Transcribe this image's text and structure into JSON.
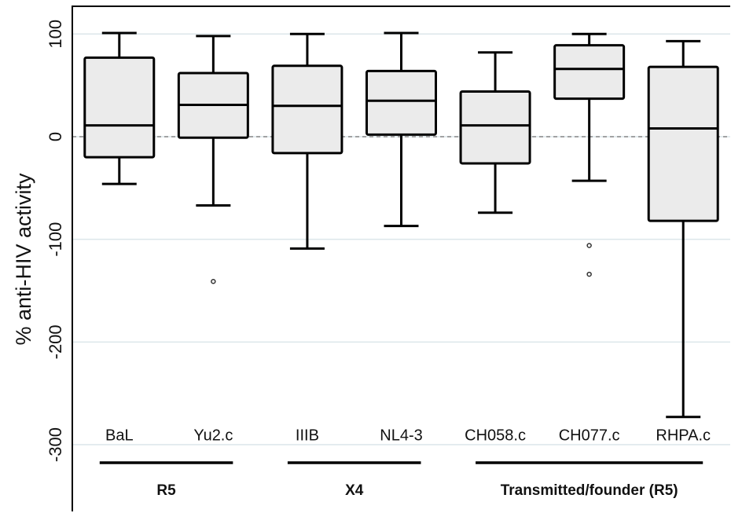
{
  "chart_data": {
    "type": "box",
    "y_label": "% anti-HIV activity",
    "categories": [
      "BaL",
      "Yu2.c",
      "IIIB",
      "NL4-3",
      "CH058.c",
      "CH077.c",
      "RHPA.c"
    ],
    "whisker_high": [
      101,
      98,
      100,
      101,
      82,
      100,
      93
    ],
    "q3": [
      77,
      62,
      69,
      64,
      44,
      89,
      68
    ],
    "median": [
      11,
      31,
      30,
      35,
      11,
      66,
      8
    ],
    "q1": [
      -20,
      -1,
      -16,
      2,
      -26,
      37,
      -82
    ],
    "whisker_low": [
      -46,
      -67,
      -109,
      -87,
      -74,
      -43,
      -273
    ],
    "outliers": [
      [],
      [
        -141
      ],
      [],
      [],
      [],
      [
        -106,
        -134
      ],
      []
    ],
    "color": "#ebebeb",
    "hline": 0,
    "groups": [
      {
        "label": "R5",
        "members": [
          "BaL",
          "Yu2.c"
        ]
      },
      {
        "label": "X4",
        "members": [
          "IIIB",
          "NL4-3"
        ]
      },
      {
        "label": "Transmitted/founder (R5)",
        "members": [
          "CH058.c",
          "CH077.c",
          "RHPA.c"
        ]
      }
    ],
    "ylim": [
      -365,
      127
    ],
    "yticks": [
      100,
      0,
      -100,
      -200,
      -300
    ],
    "grid": true
  }
}
